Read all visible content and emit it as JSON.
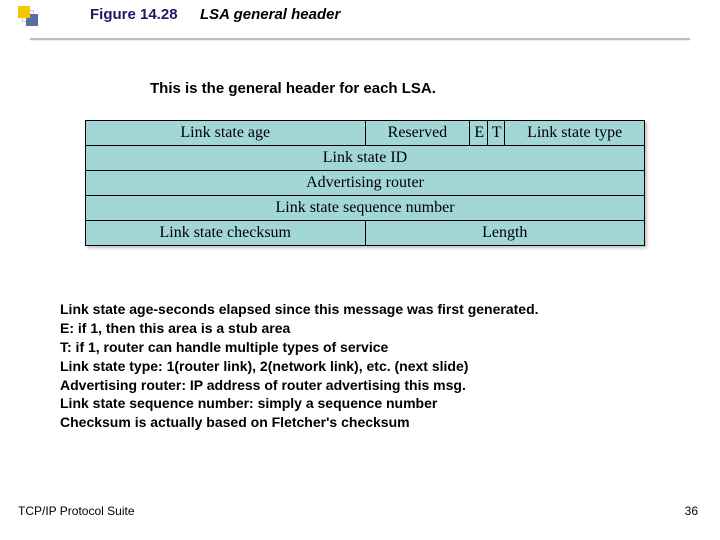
{
  "figure": {
    "number": "Figure 14.28",
    "caption": "LSA general header"
  },
  "subheader": "This is the general header for each LSA.",
  "table": {
    "rows": [
      [
        {
          "label": "Link state age",
          "colspan": 16
        },
        {
          "label": "Reserved",
          "colspan": 6
        },
        {
          "label": "E",
          "colspan": 1
        },
        {
          "label": "T",
          "colspan": 1
        },
        {
          "label": "Link state type",
          "colspan": 8
        }
      ],
      [
        {
          "label": "Link  state ID",
          "colspan": 32
        }
      ],
      [
        {
          "label": "Advertising router",
          "colspan": 32
        }
      ],
      [
        {
          "label": "Link state sequence number",
          "colspan": 32
        }
      ],
      [
        {
          "label": "Link state checksum",
          "colspan": 16
        },
        {
          "label": "Length",
          "colspan": 16
        }
      ]
    ],
    "cell_bg": "#a3d6d6"
  },
  "description": [
    "Link state age-seconds elapsed since this message was first generated.",
    "E: if 1, then this area is a stub area",
    "T: if 1, router can handle multiple types of service",
    "Link state type: 1(router link), 2(network link), etc. (next slide)",
    "Advertising router: IP address of router advertising this msg.",
    "Link state sequence number: simply a sequence number",
    "Checksum is actually based on Fletcher's checksum"
  ],
  "footer": {
    "left": "TCP/IP Protocol Suite",
    "page": "36"
  }
}
